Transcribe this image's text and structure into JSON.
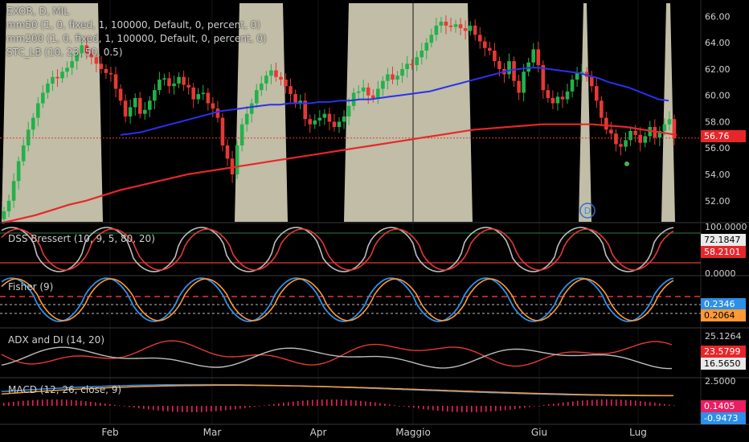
{
  "chart_data": {
    "type": "line",
    "symbol_line": "EXOR, D, MIL",
    "indicator_legends": [
      "mm50 (1, 0, fixed, 1, 100000, Default, 0, percent, 0)",
      "mm200 (1, 0, fixed, 1, 100000, Default, 0, percent, 0)",
      "STC_LB (10, 23, 50, 0.5)"
    ],
    "x_tick_labels": [
      "Feb",
      "Mar",
      "Apr",
      "Maggio",
      "Giu",
      "Lug"
    ],
    "price_panel": {
      "y_ticks": [
        "66.00",
        "64.00",
        "62.00",
        "60.00",
        "58.00",
        "56.00",
        "54.00",
        "52.00"
      ],
      "ylim": [
        50.4,
        67.0
      ],
      "last_price": "56.76",
      "closes": [
        51.2,
        52.0,
        53.5,
        55.0,
        56.2,
        57.4,
        58.3,
        59.4,
        60.2,
        60.9,
        61.4,
        61.3,
        61.8,
        62.1,
        62.6,
        63.2,
        63.8,
        63.2,
        62.9,
        62.4,
        62.0,
        61.7,
        61.6,
        60.5,
        59.6,
        58.4,
        59.1,
        59.8,
        58.6,
        58.9,
        59.6,
        60.4,
        61.2,
        61.3,
        60.7,
        60.9,
        61.4,
        60.8,
        60.6,
        59.7,
        60.1,
        60.2,
        59.4,
        59.0,
        58.3,
        56.2,
        55.2,
        54.0,
        56.2,
        57.8,
        58.6,
        59.4,
        60.4,
        60.9,
        61.5,
        61.9,
        61.4,
        61.2,
        60.7,
        60.1,
        59.4,
        59.6,
        58.2,
        57.8,
        58.1,
        58.3,
        58.6,
        58.0,
        57.6,
        58.0,
        58.4,
        59.2,
        60.2,
        60.3,
        60.6,
        60.0,
        59.8,
        60.5,
        61.1,
        61.6,
        61.2,
        61.5,
        62.0,
        62.4,
        62.3,
        62.9,
        63.4,
        64.0,
        64.6,
        65.3,
        65.6,
        65.3,
        65.2,
        65.4,
        65.1,
        64.9,
        65.3,
        64.6,
        64.1,
        63.6,
        63.4,
        62.6,
        62.0,
        61.6,
        62.6,
        61.1,
        60.2,
        61.8,
        62.5,
        63.5,
        62.3,
        60.4,
        59.8,
        59.4,
        59.9,
        59.7,
        60.3,
        61.2,
        61.7,
        61.8,
        61.4,
        60.7,
        59.6,
        58.3,
        57.4,
        57.1,
        56.3,
        56.1,
        56.6,
        57.3,
        57.0,
        56.4,
        56.9,
        57.6,
        56.8,
        57.3,
        57.8,
        58.2,
        56.76
      ],
      "ma50": [
        57.0,
        57.1,
        57.2,
        57.4,
        57.6,
        57.8,
        58.0,
        58.2,
        58.4,
        58.6,
        58.8,
        58.9,
        59.0,
        59.1,
        59.2,
        59.3,
        59.3,
        59.4,
        59.4,
        59.4,
        59.5,
        59.5,
        59.6,
        59.6,
        59.7,
        59.7,
        59.8,
        59.9,
        60.0,
        60.1,
        60.2,
        60.3,
        60.5,
        60.7,
        60.9,
        61.1,
        61.3,
        61.5,
        61.7,
        61.9,
        62.0,
        62.1,
        62.1,
        62.0,
        61.9,
        61.8,
        61.7,
        61.5,
        61.3,
        61.0,
        60.8,
        60.6,
        60.3,
        60.0,
        59.7,
        59.6
      ],
      "ma200": [
        50.3,
        50.6,
        50.9,
        51.3,
        51.7,
        52.0,
        52.4,
        52.8,
        53.1,
        53.4,
        53.7,
        54.0,
        54.2,
        54.4,
        54.6,
        54.8,
        55.0,
        55.2,
        55.4,
        55.6,
        55.8,
        56.0,
        56.2,
        56.4,
        56.6,
        56.8,
        57.0,
        57.2,
        57.4,
        57.5,
        57.6,
        57.7,
        57.8,
        57.8,
        57.8,
        57.8,
        57.7,
        57.6,
        57.4,
        57.2,
        57.0
      ]
    },
    "dss_panel": {
      "title": "DSS Bressert (10, 9, 5, 80, 20)",
      "y_ticks": [
        "100.0000",
        "0.0000"
      ],
      "last_k": "72.1847",
      "last_d": "58.2101",
      "levels": [
        80,
        20
      ]
    },
    "fisher_panel": {
      "title": "Fisher (9)",
      "last_value": "0.2346",
      "last_trigger": "0.2064"
    },
    "adx_panel": {
      "title": "ADX and DI (14, 20)",
      "y_tick": "25.1264",
      "last_plus": "23.5799",
      "last_minus": "16.5650"
    },
    "macd_panel": {
      "title": "MACD (12, 26, close, 9)",
      "y_tick": "2.5000",
      "last_hist": "0.1405",
      "last_macd": "-0.9473"
    },
    "colors": {
      "up": "#22b14c",
      "down": "#e53935",
      "ma50": "#2b2ff2",
      "ma200": "#e8262a",
      "stc_band": "#d6d1b8",
      "grey_line": "#bdbdbd",
      "orange_line": "#ff9933",
      "blue_line": "#2e8fe8",
      "macd_hist": "#e91e63"
    }
  }
}
